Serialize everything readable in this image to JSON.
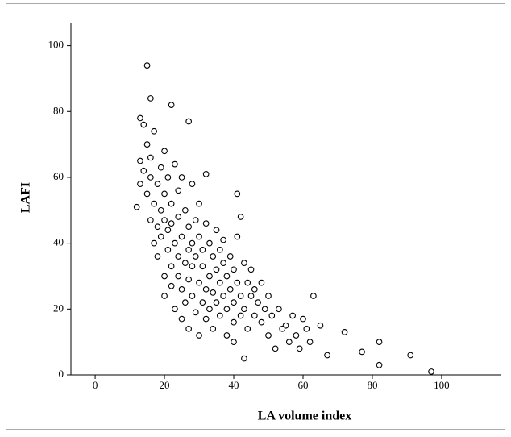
{
  "chart_data": {
    "type": "scatter",
    "x_label": "LA volume index",
    "y_label": "LAFI",
    "x": [
      15,
      16,
      22,
      27,
      13,
      41,
      42,
      63,
      72,
      77,
      82,
      82,
      91,
      97,
      67,
      65,
      62,
      58,
      60,
      55,
      43,
      40,
      12,
      13,
      13,
      14,
      14,
      15,
      15,
      16,
      16,
      16,
      17,
      17,
      17,
      18,
      18,
      18,
      19,
      19,
      19,
      20,
      20,
      20,
      20,
      20,
      21,
      21,
      21,
      22,
      22,
      22,
      22,
      23,
      23,
      23,
      24,
      24,
      24,
      24,
      25,
      25,
      25,
      25,
      26,
      26,
      26,
      27,
      27,
      27,
      27,
      28,
      28,
      28,
      28,
      29,
      29,
      29,
      30,
      30,
      30,
      30,
      31,
      31,
      31,
      32,
      32,
      32,
      32,
      33,
      33,
      33,
      34,
      34,
      34,
      35,
      35,
      35,
      36,
      36,
      36,
      37,
      37,
      37,
      38,
      38,
      38,
      39,
      39,
      40,
      40,
      40,
      41,
      41,
      42,
      42,
      43,
      43,
      44,
      44,
      45,
      45,
      46,
      46,
      47,
      48,
      48,
      49,
      50,
      50,
      51,
      52,
      53,
      54,
      56,
      57,
      59,
      61
    ],
    "values": [
      94,
      84,
      82,
      77,
      78,
      55,
      48,
      24,
      13,
      7,
      10,
      3,
      6,
      1,
      6,
      15,
      10,
      12,
      17,
      15,
      5,
      10,
      51,
      65,
      58,
      76,
      62,
      55,
      70,
      47,
      60,
      66,
      52,
      40,
      74,
      45,
      58,
      36,
      63,
      50,
      42,
      68,
      55,
      47,
      30,
      24,
      38,
      60,
      44,
      52,
      33,
      27,
      46,
      64,
      40,
      20,
      56,
      36,
      48,
      30,
      60,
      42,
      26,
      17,
      50,
      34,
      22,
      45,
      38,
      29,
      14,
      58,
      40,
      24,
      33,
      47,
      19,
      36,
      52,
      42,
      28,
      12,
      38,
      22,
      33,
      46,
      26,
      17,
      61,
      40,
      30,
      20,
      36,
      25,
      14,
      44,
      32,
      22,
      38,
      28,
      18,
      34,
      24,
      41,
      30,
      20,
      12,
      36,
      26,
      32,
      22,
      16,
      42,
      28,
      24,
      18,
      34,
      20,
      28,
      14,
      24,
      32,
      18,
      26,
      22,
      16,
      28,
      20,
      12,
      24,
      18,
      8,
      20,
      14,
      10,
      18,
      8,
      14
    ],
    "color": "#000000",
    "xlim": [
      -7,
      117
    ],
    "ylim": [
      0,
      107
    ],
    "xticks": [
      0,
      20,
      40,
      60,
      80,
      100
    ],
    "yticks": [
      0,
      20,
      40,
      60,
      80,
      100
    ]
  }
}
